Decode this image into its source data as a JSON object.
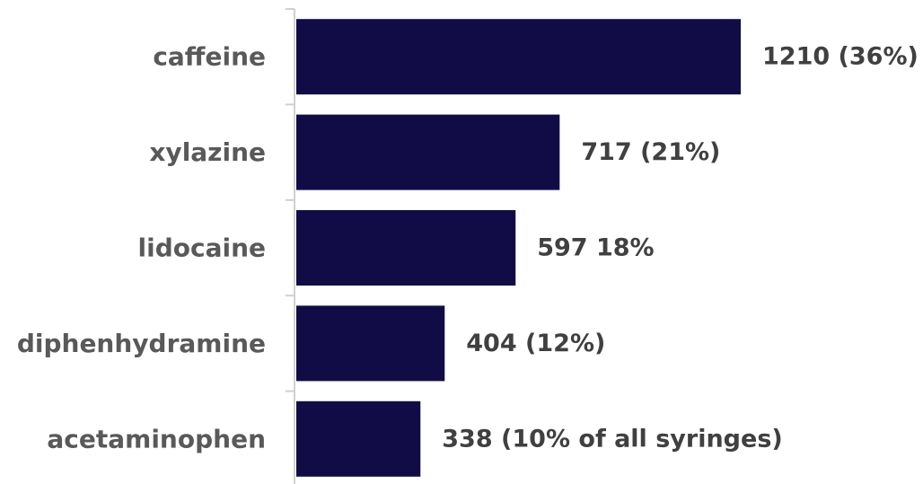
{
  "chart_data": {
    "type": "bar",
    "orientation": "horizontal",
    "categories": [
      "caffeine",
      "xylazine",
      "lidocaine",
      "diphenhydramine",
      "acetaminophen"
    ],
    "values": [
      1210,
      717,
      597,
      404,
      338
    ],
    "data_labels": [
      "1210 (36%)",
      "717 (21%)",
      "597 18%",
      "404 (12%)",
      "338 (10% of all syringes)"
    ],
    "title": "",
    "xlabel": "",
    "ylabel": "",
    "xlim": [
      0,
      1210
    ],
    "grid": false,
    "legend": "none",
    "bar_color": "#120c46",
    "axis_color": "#d0d0d0",
    "category_label_color": "#595959",
    "data_label_color": "#404040"
  }
}
